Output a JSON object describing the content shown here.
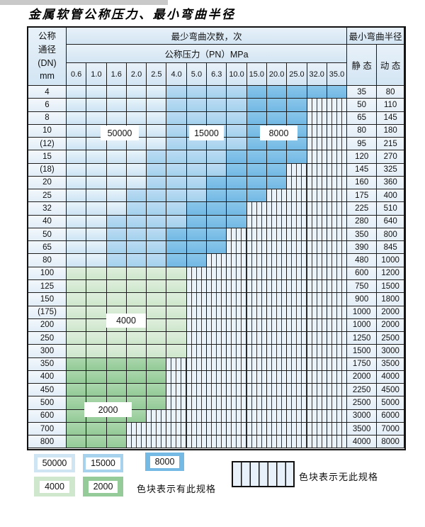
{
  "title": "金属软管公称压力、最小弯曲半径",
  "table": {
    "header": {
      "dn_lines": [
        "公称",
        "通径",
        "(DN)",
        "mm"
      ],
      "bend_cycles": "最少弯曲次数，次",
      "pressure": "公称压力（PN）MPa",
      "pressure_columns": [
        "0.6",
        "1.0",
        "1.6",
        "2.0",
        "2.5",
        "4.0",
        "5.0",
        "6.3",
        "10.0",
        "15.0",
        "20.0",
        "25.0",
        "32.0",
        "35.0"
      ],
      "radius": "最小弯曲半径",
      "static": "静 态",
      "dynamic": "动 态"
    },
    "rows": [
      {
        "dn": "4",
        "static": "35",
        "dynamic": "80",
        "hatch_from": null,
        "bands": [
          {
            "c": "blue_light",
            "from": 1,
            "to": 5
          },
          {
            "c": "blue_mid",
            "from": 6,
            "to": 9
          },
          {
            "c": "blue_dark",
            "from": 10,
            "to": 14
          }
        ]
      },
      {
        "dn": "6",
        "static": "50",
        "dynamic": "110",
        "hatch_from": 13,
        "bands": [
          {
            "c": "blue_light",
            "from": 1,
            "to": 5
          },
          {
            "c": "blue_mid",
            "from": 6,
            "to": 9
          },
          {
            "c": "blue_dark",
            "from": 10,
            "to": 12
          }
        ]
      },
      {
        "dn": "8",
        "static": "65",
        "dynamic": "145",
        "hatch_from": 13,
        "bands": [
          {
            "c": "blue_light",
            "from": 1,
            "to": 5
          },
          {
            "c": "blue_mid",
            "from": 6,
            "to": 9
          },
          {
            "c": "blue_dark",
            "from": 10,
            "to": 12
          }
        ]
      },
      {
        "dn": "10",
        "static": "80",
        "dynamic": "180",
        "hatch_from": 13,
        "bands": [
          {
            "c": "blue_light",
            "from": 1,
            "to": 5
          },
          {
            "c": "blue_mid",
            "from": 6,
            "to": 9
          },
          {
            "c": "blue_dark",
            "from": 10,
            "to": 12
          }
        ]
      },
      {
        "dn": "(12)",
        "static": "95",
        "dynamic": "215",
        "hatch_from": 13,
        "bands": [
          {
            "c": "blue_light",
            "from": 1,
            "to": 5
          },
          {
            "c": "blue_mid",
            "from": 6,
            "to": 9
          },
          {
            "c": "blue_dark",
            "from": 10,
            "to": 12
          }
        ]
      },
      {
        "dn": "15",
        "static": "120",
        "dynamic": "270",
        "hatch_from": 13,
        "bands": [
          {
            "c": "blue_light",
            "from": 1,
            "to": 4
          },
          {
            "c": "blue_mid",
            "from": 5,
            "to": 8
          },
          {
            "c": "blue_dark",
            "from": 9,
            "to": 12
          }
        ]
      },
      {
        "dn": "(18)",
        "static": "145",
        "dynamic": "325",
        "hatch_from": 12,
        "bands": [
          {
            "c": "blue_light",
            "from": 1,
            "to": 4
          },
          {
            "c": "blue_mid",
            "from": 5,
            "to": 8
          },
          {
            "c": "blue_dark",
            "from": 9,
            "to": 11
          }
        ]
      },
      {
        "dn": "20",
        "static": "160",
        "dynamic": "360",
        "hatch_from": 12,
        "bands": [
          {
            "c": "blue_light",
            "from": 1,
            "to": 4
          },
          {
            "c": "blue_mid",
            "from": 5,
            "to": 7
          },
          {
            "c": "blue_dark",
            "from": 8,
            "to": 11
          }
        ]
      },
      {
        "dn": "25",
        "static": "175",
        "dynamic": "400",
        "hatch_from": 11,
        "bands": [
          {
            "c": "blue_light",
            "from": 1,
            "to": 3
          },
          {
            "c": "blue_mid",
            "from": 4,
            "to": 7
          },
          {
            "c": "blue_dark",
            "from": 8,
            "to": 10
          }
        ]
      },
      {
        "dn": "32",
        "static": "225",
        "dynamic": "510",
        "hatch_from": 10,
        "bands": [
          {
            "c": "blue_light",
            "from": 1,
            "to": 3
          },
          {
            "c": "blue_mid",
            "from": 4,
            "to": 6
          },
          {
            "c": "blue_dark",
            "from": 7,
            "to": 9
          }
        ]
      },
      {
        "dn": "40",
        "static": "280",
        "dynamic": "640",
        "hatch_from": 10,
        "bands": [
          {
            "c": "blue_light",
            "from": 1,
            "to": 2
          },
          {
            "c": "blue_mid",
            "from": 3,
            "to": 6
          },
          {
            "c": "blue_dark",
            "from": 7,
            "to": 9
          }
        ]
      },
      {
        "dn": "50",
        "static": "350",
        "dynamic": "800",
        "hatch_from": 9,
        "bands": [
          {
            "c": "blue_light",
            "from": 1,
            "to": 2
          },
          {
            "c": "blue_mid",
            "from": 3,
            "to": 5
          },
          {
            "c": "blue_dark",
            "from": 6,
            "to": 8
          }
        ]
      },
      {
        "dn": "65",
        "static": "390",
        "dynamic": "845",
        "hatch_from": 9,
        "bands": [
          {
            "c": "blue_light",
            "from": 1,
            "to": 2
          },
          {
            "c": "blue_mid",
            "from": 3,
            "to": 5
          },
          {
            "c": "blue_dark",
            "from": 6,
            "to": 8
          }
        ]
      },
      {
        "dn": "80",
        "static": "480",
        "dynamic": "1000",
        "hatch_from": 8,
        "bands": [
          {
            "c": "blue_light",
            "from": 1,
            "to": 2
          },
          {
            "c": "blue_mid",
            "from": 3,
            "to": 5
          },
          {
            "c": "blue_dark",
            "from": 6,
            "to": 7
          }
        ]
      },
      {
        "dn": "100",
        "static": "600",
        "dynamic": "1200",
        "hatch_from": 7,
        "bands": [
          {
            "c": "green_light",
            "from": 1,
            "to": 6
          }
        ]
      },
      {
        "dn": "125",
        "static": "750",
        "dynamic": "1500",
        "hatch_from": 7,
        "bands": [
          {
            "c": "green_light",
            "from": 1,
            "to": 6
          }
        ]
      },
      {
        "dn": "150",
        "static": "900",
        "dynamic": "1800",
        "hatch_from": 7,
        "bands": [
          {
            "c": "green_light",
            "from": 1,
            "to": 6
          }
        ]
      },
      {
        "dn": "(175)",
        "static": "1000",
        "dynamic": "2000",
        "hatch_from": 7,
        "bands": [
          {
            "c": "green_light",
            "from": 1,
            "to": 6
          }
        ]
      },
      {
        "dn": "200",
        "static": "1000",
        "dynamic": "2000",
        "hatch_from": 7,
        "bands": [
          {
            "c": "green_light",
            "from": 1,
            "to": 6
          }
        ]
      },
      {
        "dn": "250",
        "static": "1250",
        "dynamic": "2500",
        "hatch_from": 7,
        "bands": [
          {
            "c": "green_light",
            "from": 1,
            "to": 6
          }
        ]
      },
      {
        "dn": "300",
        "static": "1500",
        "dynamic": "3000",
        "hatch_from": 7,
        "bands": [
          {
            "c": "green_light",
            "from": 1,
            "to": 6
          }
        ]
      },
      {
        "dn": "350",
        "static": "1750",
        "dynamic": "3500",
        "hatch_from": 6,
        "bands": [
          {
            "c": "green_dark",
            "from": 1,
            "to": 5
          }
        ]
      },
      {
        "dn": "400",
        "static": "2000",
        "dynamic": "4000",
        "hatch_from": 6,
        "bands": [
          {
            "c": "green_dark",
            "from": 1,
            "to": 5
          }
        ]
      },
      {
        "dn": "450",
        "static": "2250",
        "dynamic": "4500",
        "hatch_from": 6,
        "bands": [
          {
            "c": "green_dark",
            "from": 1,
            "to": 5
          }
        ]
      },
      {
        "dn": "500",
        "static": "2500",
        "dynamic": "5000",
        "hatch_from": 6,
        "bands": [
          {
            "c": "green_dark",
            "from": 1,
            "to": 5
          }
        ]
      },
      {
        "dn": "600",
        "static": "3000",
        "dynamic": "6000",
        "hatch_from": 5,
        "bands": [
          {
            "c": "green_dark",
            "from": 1,
            "to": 4
          }
        ]
      },
      {
        "dn": "700",
        "static": "3500",
        "dynamic": "7000",
        "hatch_from": 4,
        "bands": [
          {
            "c": "green_dark",
            "from": 1,
            "to": 3
          }
        ]
      },
      {
        "dn": "800",
        "static": "4000",
        "dynamic": "8000",
        "hatch_from": 4,
        "bands": [
          {
            "c": "green_dark",
            "from": 1,
            "to": 3
          }
        ]
      }
    ]
  },
  "overlay_labels": [
    {
      "text": "50000"
    },
    {
      "text": "15000"
    },
    {
      "text": "8000"
    },
    {
      "text": "4000"
    },
    {
      "text": "2000"
    }
  ],
  "legend": {
    "swatches": [
      {
        "label": "50000",
        "color_key": "blue_light"
      },
      {
        "label": "15000",
        "color_key": "blue_mid"
      },
      {
        "label": "8000",
        "color_key": "blue_dark"
      },
      {
        "label": "4000",
        "color_key": "green_light"
      },
      {
        "label": "2000",
        "color_key": "green_dark"
      }
    ],
    "has_spec_text": "色块表示有此规格",
    "no_spec_text": "色块表示无此规格"
  },
  "colors": {
    "blue_light": "#cfe5f4",
    "blue_mid": "#a6d2ee",
    "blue_dark": "#74bae5",
    "green_light": "#cfe7cd",
    "green_dark": "#95cb98",
    "hatch_bg": "#eaf2fa"
  }
}
